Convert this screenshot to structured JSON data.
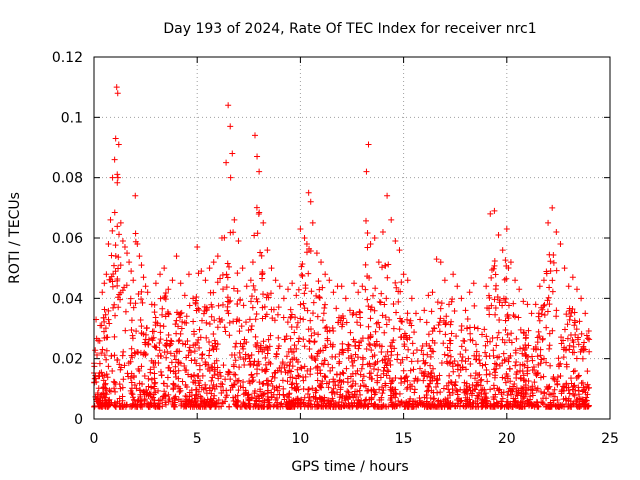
{
  "chart_data": {
    "type": "scatter",
    "title": "Day 193 of 2024, Rate Of TEC Index for receiver nrc1",
    "xlabel": "GPS time / hours",
    "ylabel": "ROTI / TECUs",
    "xlim": [
      0,
      25
    ],
    "ylim": [
      0,
      0.12
    ],
    "x_ticks": [
      0,
      5,
      10,
      15,
      20,
      25
    ],
    "x_tick_labels": [
      "0",
      "5",
      "10",
      "15",
      "20",
      "25"
    ],
    "y_ticks": [
      0,
      0.02,
      0.04,
      0.06,
      0.08,
      0.1,
      0.12
    ],
    "y_tick_labels": [
      "0",
      "0.02",
      "0.04",
      "0.06",
      "0.08",
      "0.1",
      "0.12"
    ],
    "grid": true,
    "marker": "plus",
    "color": "#ff0000",
    "series": [
      {
        "x": [
          0.1,
          0.2,
          0.3,
          0.4,
          0.5,
          0.6,
          0.7,
          0.8,
          0.9,
          1.0,
          1.05,
          1.1,
          1.15,
          1.2,
          1.3,
          1.4,
          1.5,
          1.6,
          1.7,
          1.8,
          1.9,
          2.0,
          2.1,
          2.2,
          2.3,
          2.4,
          2.5,
          2.6,
          2.8,
          3.0,
          3.2,
          3.4,
          3.6,
          3.8,
          4.0,
          4.2,
          4.4,
          4.6,
          4.8,
          5.0,
          5.2,
          5.4,
          5.6,
          5.8,
          6.0,
          6.2,
          6.4,
          6.5,
          6.6,
          6.7,
          6.8,
          7.0,
          7.2,
          7.4,
          7.6,
          7.7,
          7.8,
          7.9,
          8.0,
          8.2,
          8.4,
          8.6,
          8.8,
          9.0,
          9.2,
          9.4,
          9.6,
          9.8,
          10.0,
          10.2,
          10.4,
          10.5,
          10.6,
          10.8,
          11.0,
          11.2,
          11.4,
          11.6,
          11.8,
          12.0,
          12.2,
          12.4,
          12.6,
          12.8,
          13.0,
          13.2,
          13.3,
          13.4,
          13.6,
          13.8,
          14.0,
          14.2,
          14.4,
          14.6,
          14.8,
          15.0,
          15.2,
          15.4,
          15.6,
          15.8,
          16.0,
          16.2,
          16.4,
          16.6,
          16.8,
          17.0,
          17.2,
          17.4,
          17.6,
          17.8,
          18.0,
          18.2,
          18.4,
          18.6,
          18.8,
          19.0,
          19.2,
          19.4,
          19.6,
          19.8,
          20.0,
          20.2,
          20.4,
          20.6,
          20.8,
          21.0,
          21.2,
          21.4,
          21.6,
          21.8,
          22.0,
          22.2,
          22.4,
          22.6,
          22.8,
          23.0,
          23.2,
          23.4,
          23.6,
          23.8
        ],
        "y": [
          0.033,
          0.026,
          0.031,
          0.042,
          0.045,
          0.048,
          0.058,
          0.066,
          0.08,
          0.086,
          0.093,
          0.11,
          0.108,
          0.091,
          0.065,
          0.059,
          0.057,
          0.055,
          0.052,
          0.049,
          0.046,
          0.074,
          0.058,
          0.054,
          0.051,
          0.047,
          0.044,
          0.042,
          0.038,
          0.045,
          0.048,
          0.05,
          0.043,
          0.046,
          0.054,
          0.045,
          0.041,
          0.048,
          0.04,
          0.057,
          0.049,
          0.046,
          0.05,
          0.052,
          0.054,
          0.06,
          0.085,
          0.104,
          0.097,
          0.088,
          0.066,
          0.059,
          0.05,
          0.044,
          0.046,
          0.052,
          0.094,
          0.087,
          0.082,
          0.065,
          0.056,
          0.05,
          0.046,
          0.044,
          0.04,
          0.043,
          0.045,
          0.041,
          0.063,
          0.06,
          0.075,
          0.072,
          0.065,
          0.055,
          0.052,
          0.048,
          0.046,
          0.042,
          0.044,
          0.044,
          0.04,
          0.036,
          0.045,
          0.042,
          0.044,
          0.082,
          0.091,
          0.058,
          0.06,
          0.052,
          0.062,
          0.074,
          0.066,
          0.059,
          0.056,
          0.048,
          0.046,
          0.04,
          0.035,
          0.033,
          0.036,
          0.041,
          0.042,
          0.053,
          0.052,
          0.046,
          0.038,
          0.048,
          0.044,
          0.04,
          0.036,
          0.042,
          0.045,
          0.03,
          0.028,
          0.044,
          0.068,
          0.069,
          0.061,
          0.056,
          0.063,
          0.052,
          0.046,
          0.043,
          0.039,
          0.038,
          0.035,
          0.038,
          0.044,
          0.046,
          0.065,
          0.07,
          0.062,
          0.058,
          0.05,
          0.044,
          0.047,
          0.043,
          0.04,
          0.035
        ]
      }
    ]
  }
}
